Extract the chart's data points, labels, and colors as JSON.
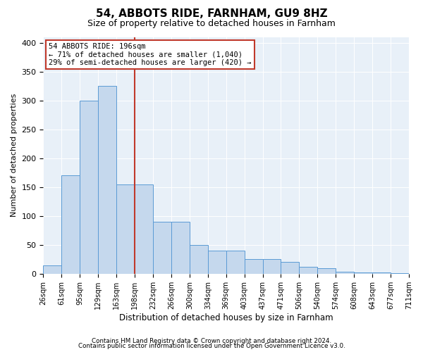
{
  "title": "54, ABBOTS RIDE, FARNHAM, GU9 8HZ",
  "subtitle": "Size of property relative to detached houses in Farnham",
  "xlabel": "Distribution of detached houses by size in Farnham",
  "ylabel": "Number of detached properties",
  "footnote1": "Contains HM Land Registry data © Crown copyright and database right 2024.",
  "footnote2": "Contains public sector information licensed under the Open Government Licence v3.0.",
  "annotation_line1": "54 ABBOTS RIDE: 196sqm",
  "annotation_line2": "← 71% of detached houses are smaller (1,040)",
  "annotation_line3": "29% of semi-detached houses are larger (420) →",
  "bin_labels": [
    "26sqm",
    "61sqm",
    "95sqm",
    "129sqm",
    "163sqm",
    "198sqm",
    "232sqm",
    "266sqm",
    "300sqm",
    "334sqm",
    "369sqm",
    "403sqm",
    "437sqm",
    "471sqm",
    "506sqm",
    "540sqm",
    "574sqm",
    "608sqm",
    "643sqm",
    "677sqm",
    "711sqm"
  ],
  "values": [
    15,
    170,
    300,
    325,
    155,
    155,
    90,
    90,
    50,
    40,
    40,
    25,
    25,
    20,
    12,
    10,
    4,
    2,
    2,
    1
  ],
  "bar_color": "#c5d8ed",
  "bar_edge_color": "#5b9bd5",
  "vline_color": "#c0392b",
  "annotation_box_edgecolor": "#c0392b",
  "background_color": "#e8f0f8",
  "ylim": [
    0,
    410
  ],
  "yticks": [
    0,
    50,
    100,
    150,
    200,
    250,
    300,
    350,
    400
  ]
}
